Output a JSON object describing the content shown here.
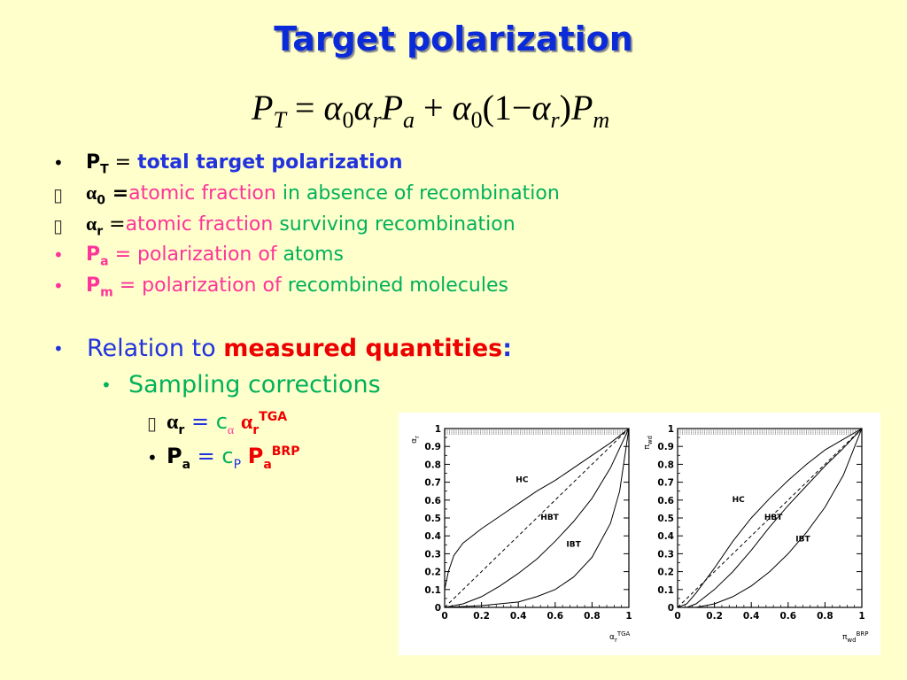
{
  "title": "Target polarization",
  "formula": {
    "lhs": "P",
    "lhs_sub": "T",
    "eq": "=",
    "a": "α",
    "zero": "0",
    "r": "r",
    "P": "P",
    "a_sub": "a",
    "plus": "+",
    "one": "(1−",
    "close": ")",
    "m_sub": "m"
  },
  "bullets": {
    "b1": {
      "sym": "P",
      "sub": "T",
      "eq": " = ",
      "text": "total target polarization"
    },
    "b2": {
      "sym": "α",
      "sub": "0",
      "eq": " =",
      "text1": "atomic fraction ",
      "text2": "in absence of recombination"
    },
    "b3": {
      "sym": "α",
      "sub": "r",
      "eq": " =",
      "text1": "atomic fraction ",
      "text2": "surviving recombination"
    },
    "b4": {
      "sym": "P",
      "sub": "a",
      "eq": " = ",
      "text1": "polarization of ",
      "text2": "atoms"
    },
    "b5": {
      "sym": "P",
      "sub": "m",
      "eq": " = ",
      "text1": "polarization of ",
      "text2": "recombined molecules"
    },
    "relation_prefix": "Relation to ",
    "relation_hi": "measured quantities",
    "relation_colon": ":",
    "sampling": "Sampling corrections",
    "s1": {
      "sym": "α",
      "sub": "r",
      "eq": " = ",
      "c": "c",
      "csub": "α",
      "sym2": "α",
      "sub2": "r",
      "sup2": "TGA"
    },
    "s2": {
      "sym": "P",
      "sub": "a",
      "eq": " = ",
      "c": "c",
      "csub": "P",
      "sym2": "P",
      "sub2": "a",
      "sup2": "BRP"
    }
  },
  "colors": {
    "blue": "#2233dd",
    "green": "#00b15a",
    "pink": "#ff3399",
    "red": "#ee0000",
    "title": "#0b2bd8"
  },
  "chart_data": [
    {
      "type": "line",
      "xlabel": "α_r^TGA",
      "ylabel": "α_r",
      "xlim": [
        0,
        1
      ],
      "ylim": [
        0,
        1
      ],
      "xticks": [
        "0",
        "0.2",
        "0.4",
        "0.6",
        "0.8",
        "1"
      ],
      "yticks": [
        "0",
        "0.1",
        "0.2",
        "0.3",
        "0.4",
        "0.5",
        "0.6",
        "0.7",
        "0.8",
        "0.9",
        "1"
      ],
      "series": [
        {
          "name": "HC",
          "x": [
            0,
            0.02,
            0.05,
            0.1,
            0.2,
            0.3,
            0.4,
            0.5,
            0.6,
            0.7,
            0.8,
            0.9,
            1
          ],
          "values": [
            0.1,
            0.2,
            0.29,
            0.36,
            0.44,
            0.51,
            0.58,
            0.65,
            0.71,
            0.78,
            0.85,
            0.92,
            1
          ]
        },
        {
          "name": "HBT",
          "x": [
            0,
            0.1,
            0.2,
            0.3,
            0.4,
            0.5,
            0.6,
            0.7,
            0.8,
            0.9,
            1
          ],
          "values": [
            0,
            0.02,
            0.06,
            0.12,
            0.19,
            0.27,
            0.37,
            0.48,
            0.61,
            0.78,
            1
          ]
        },
        {
          "name": "IBT",
          "x": [
            0,
            0.2,
            0.4,
            0.5,
            0.6,
            0.7,
            0.8,
            0.9,
            0.95,
            1
          ],
          "values": [
            0,
            0.01,
            0.03,
            0.06,
            0.1,
            0.17,
            0.28,
            0.47,
            0.65,
            1
          ]
        },
        {
          "name": "",
          "x": [
            0,
            1
          ],
          "values": [
            0,
            1
          ]
        }
      ]
    },
    {
      "type": "line",
      "xlabel": "π_wd^BRP",
      "ylabel": "π_wd",
      "xlim": [
        0,
        1
      ],
      "ylim": [
        0,
        1
      ],
      "xticks": [
        "0",
        "0.2",
        "0.4",
        "0.6",
        "0.8",
        "1"
      ],
      "yticks": [
        "0",
        "0.1",
        "0.2",
        "0.3",
        "0.4",
        "0.5",
        "0.6",
        "0.7",
        "0.8",
        "0.9",
        "1"
      ],
      "series": [
        {
          "name": "HC",
          "x": [
            0,
            0.05,
            0.1,
            0.2,
            0.3,
            0.4,
            0.5,
            0.6,
            0.7,
            0.8,
            0.9,
            1
          ],
          "values": [
            0,
            0.02,
            0.08,
            0.22,
            0.37,
            0.5,
            0.61,
            0.71,
            0.8,
            0.88,
            0.94,
            1
          ]
        },
        {
          "name": "HBT",
          "x": [
            0.05,
            0.1,
            0.2,
            0.3,
            0.4,
            0.5,
            0.6,
            0.7,
            0.8,
            0.9,
            1
          ],
          "values": [
            0,
            0.02,
            0.1,
            0.2,
            0.32,
            0.45,
            0.57,
            0.68,
            0.79,
            0.89,
            1
          ]
        },
        {
          "name": "IBT",
          "x": [
            0.1,
            0.2,
            0.3,
            0.4,
            0.5,
            0.6,
            0.7,
            0.8,
            0.9,
            1
          ],
          "values": [
            0,
            0.02,
            0.06,
            0.12,
            0.2,
            0.3,
            0.42,
            0.56,
            0.74,
            1
          ]
        },
        {
          "name": "",
          "x": [
            0,
            1
          ],
          "values": [
            0,
            1
          ]
        }
      ]
    }
  ]
}
